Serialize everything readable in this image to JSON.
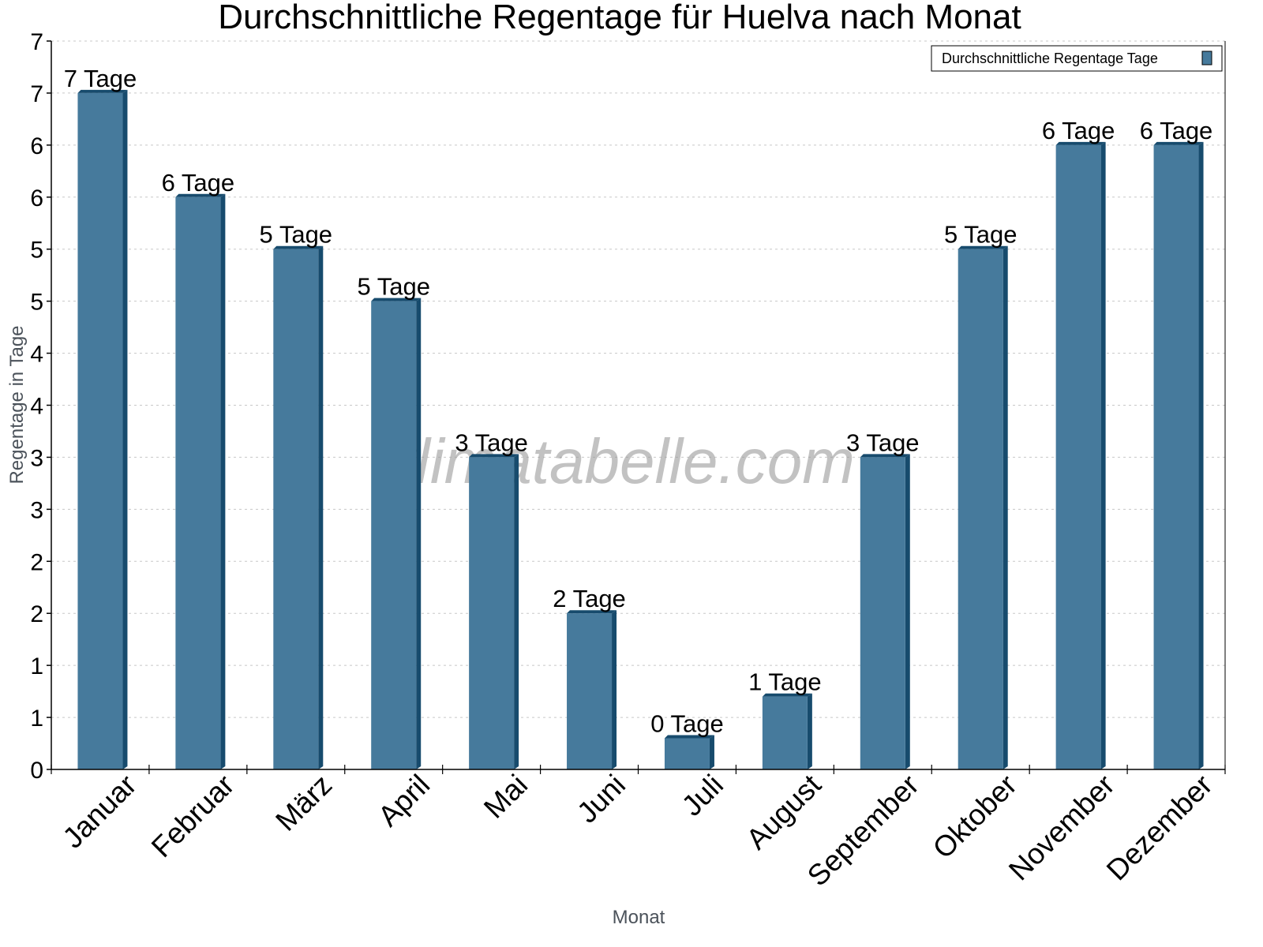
{
  "chart_data": {
    "type": "bar",
    "title": "Durchschnittliche Regentage für Huelva nach Monat",
    "xlabel": "Monat",
    "ylabel": "Regentage in Tage",
    "categories": [
      "Januar",
      "Februar",
      "März",
      "April",
      "Mai",
      "Juni",
      "Juli",
      "August",
      "September",
      "Oktober",
      "November",
      "Dezember"
    ],
    "series": [
      {
        "name": "Durchschnittliche Regentage Tage",
        "values": [
          6.5,
          5.5,
          5.0,
          4.5,
          3.0,
          1.5,
          0.3,
          0.7,
          3.0,
          5.0,
          6.0,
          6.0
        ],
        "data_labels": [
          "7 Tage",
          "6 Tage",
          "5 Tage",
          "5 Tage",
          "3 Tage",
          "2 Tage",
          "0 Tage",
          "1 Tage",
          "3 Tage",
          "5 Tage",
          "6 Tage",
          "6 Tage"
        ]
      }
    ],
    "ylim": [
      0,
      7
    ],
    "ytick_values": [
      0,
      0.5,
      1,
      1.5,
      2,
      2.5,
      3,
      3.5,
      4,
      4.5,
      5,
      5.5,
      6,
      6.5,
      7
    ],
    "ytick_labels": [
      "0",
      "1",
      "1",
      "2",
      "2",
      "3",
      "3",
      "4",
      "4",
      "5",
      "5",
      "6",
      "6",
      "7",
      "7"
    ],
    "grid": true,
    "legend_position": "top-right",
    "watermark": "klimatabelle.com",
    "colors": {
      "bar_front": "#467a9c",
      "bar_side": "#174b6d",
      "grid": "#c8c8c8",
      "axis": "#000000"
    }
  }
}
